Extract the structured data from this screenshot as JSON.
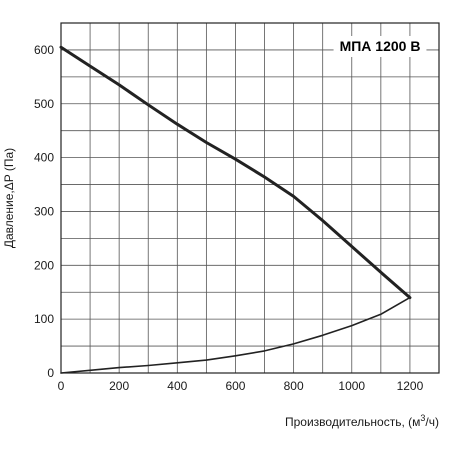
{
  "chart_data": {
    "type": "line",
    "title": "МПА 1200 B",
    "xlabel_prefix": "Производительность, (м",
    "xlabel_sup": "3",
    "xlabel_suffix": "/ч)",
    "ylabel": "Давление,ΔP (Па)",
    "xlim": [
      0,
      1300
    ],
    "ylim": [
      0,
      650
    ],
    "x_major_ticks": [
      0,
      200,
      400,
      600,
      800,
      1000,
      1200
    ],
    "y_major_ticks": [
      0,
      100,
      200,
      300,
      400,
      500,
      600
    ],
    "x_grid_step": 100,
    "y_grid_step": 50,
    "grid": true,
    "series": [
      {
        "values": [
          [
            0,
            605
          ],
          [
            100,
            570
          ],
          [
            200,
            535
          ],
          [
            300,
            498
          ],
          [
            400,
            462
          ],
          [
            500,
            428
          ],
          [
            600,
            397
          ],
          [
            700,
            364
          ],
          [
            800,
            328
          ],
          [
            900,
            283
          ],
          [
            1000,
            235
          ],
          [
            1100,
            187
          ],
          [
            1200,
            140
          ]
        ]
      },
      {
        "values": [
          [
            0,
            0
          ],
          [
            100,
            5
          ],
          [
            200,
            10
          ],
          [
            300,
            14
          ],
          [
            400,
            19
          ],
          [
            500,
            24
          ],
          [
            600,
            32
          ],
          [
            700,
            41
          ],
          [
            800,
            54
          ],
          [
            900,
            70
          ],
          [
            1000,
            88
          ],
          [
            1100,
            109
          ],
          [
            1200,
            140
          ]
        ]
      }
    ],
    "colors": {
      "curve": "#222222",
      "grid": "#555555",
      "frame": "#222222",
      "text": "#1a1a1a"
    }
  }
}
